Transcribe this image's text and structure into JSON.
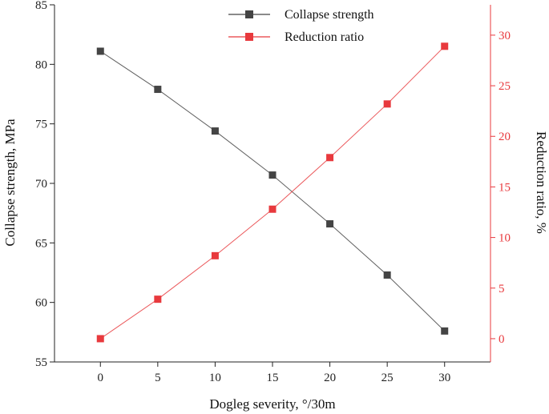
{
  "chart_data": {
    "type": "line",
    "xlabel": "Dogleg severity, °/30m",
    "x": [
      0,
      5,
      10,
      15,
      20,
      25,
      30
    ],
    "x_ticks": [
      "0",
      "5",
      "10",
      "15",
      "20",
      "25",
      "30"
    ],
    "xlim": [
      -4,
      34
    ],
    "y_left": {
      "label": "Collapse strength, MPa",
      "lim": [
        55,
        85
      ],
      "ticks": [
        "55",
        "60",
        "65",
        "70",
        "75",
        "80",
        "85"
      ],
      "color": "#222222"
    },
    "y_right": {
      "label": "Reduction ratio, %",
      "lim": [
        -2.3,
        33
      ],
      "ticks": [
        "0",
        "5",
        "10",
        "15",
        "20",
        "25",
        "30"
      ],
      "color": "#e8393d"
    },
    "series": [
      {
        "name": "Collapse strength",
        "axis": "left",
        "color": "#444444",
        "marker": "square",
        "values": [
          81.1,
          77.9,
          74.4,
          70.7,
          66.6,
          62.3,
          57.6
        ]
      },
      {
        "name": "Reduction ratio",
        "axis": "right",
        "color": "#e8393d",
        "marker": "square",
        "values": [
          0,
          3.9,
          8.2,
          12.8,
          17.9,
          23.2,
          28.9
        ]
      }
    ],
    "legend_position": "top-center",
    "grid": false
  }
}
